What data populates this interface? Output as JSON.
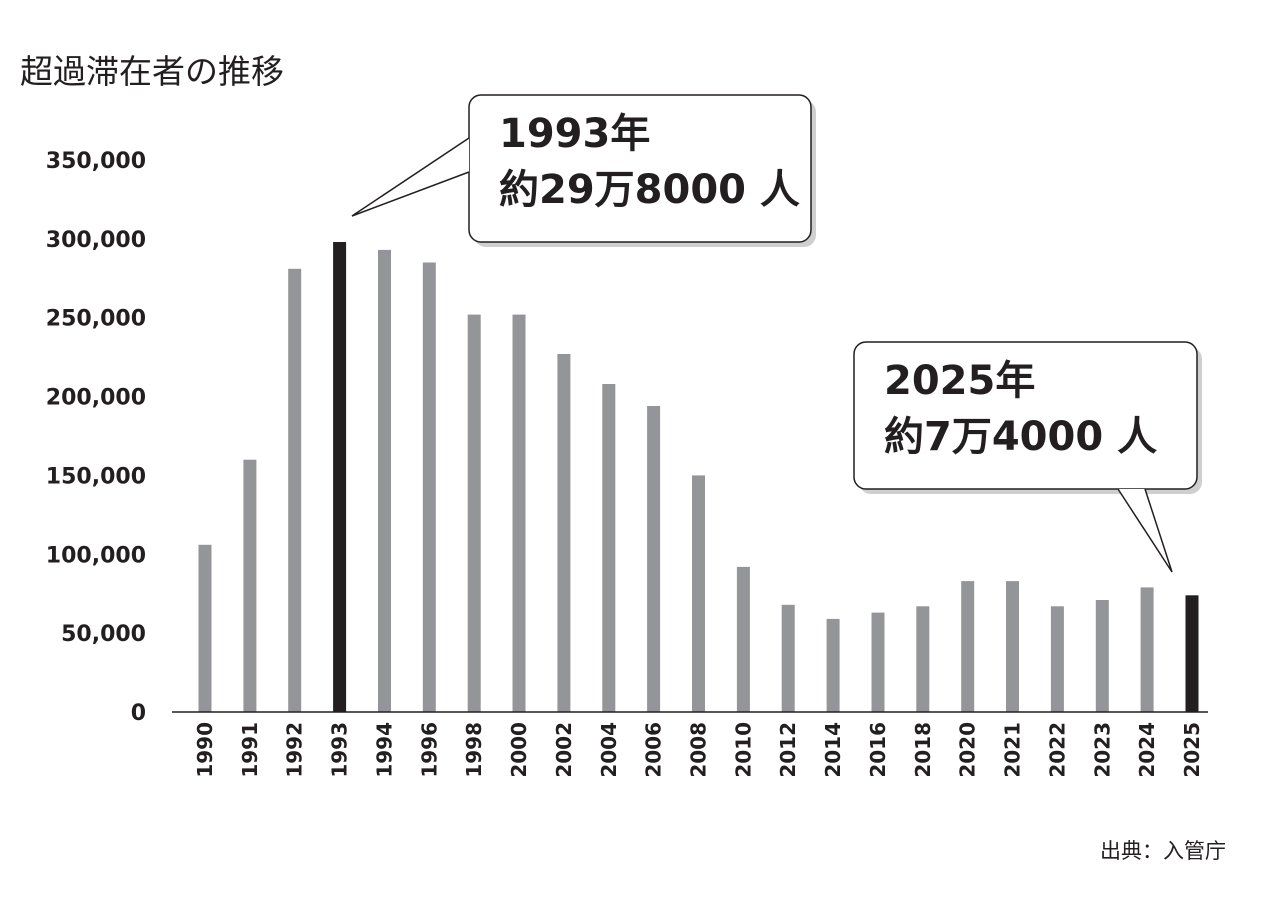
{
  "chart_data": {
    "type": "bar",
    "title": "超過滞在者の推移",
    "xlabel": "",
    "ylabel": "",
    "ylim": [
      0,
      350000
    ],
    "yticks": [
      0,
      50000,
      100000,
      150000,
      200000,
      250000,
      300000,
      350000
    ],
    "ytick_labels": [
      "0",
      "50,000",
      "100,000",
      "150,000",
      "200,000",
      "250,000",
      "300,000",
      "350,000"
    ],
    "categories": [
      "1990",
      "1991",
      "1992",
      "1993",
      "1994",
      "1996",
      "1998",
      "2000",
      "2002",
      "2004",
      "2006",
      "2008",
      "2010",
      "2012",
      "2014",
      "2016",
      "2018",
      "2020",
      "2021",
      "2022",
      "2023",
      "2024",
      "2025"
    ],
    "values": [
      106000,
      160000,
      281000,
      298000,
      293000,
      285000,
      252000,
      252000,
      227000,
      208000,
      194000,
      150000,
      92000,
      68000,
      59000,
      63000,
      67000,
      83000,
      83000,
      67000,
      71000,
      79000,
      74000
    ],
    "highlight": [
      "1993",
      "2025"
    ],
    "colors": {
      "bar": "#939598",
      "highlight": "#231f20"
    },
    "grid": false,
    "annotations": [
      {
        "category": "1993",
        "line1": "1993年",
        "line2": "約29万8000 人"
      },
      {
        "category": "2025",
        "line1": "2025年",
        "line2": "約7万4000 人"
      }
    ],
    "source": "出典：入管庁"
  }
}
